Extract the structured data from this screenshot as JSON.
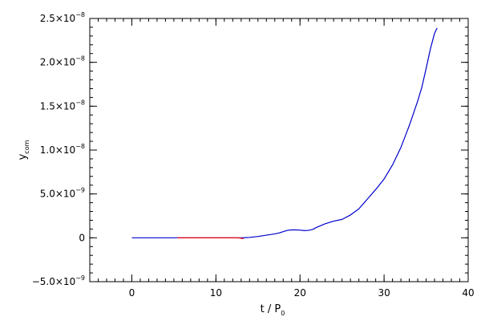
{
  "chart_data": {
    "type": "line",
    "xlim": [
      -5,
      40
    ],
    "ylim": [
      -5e-09,
      2.5e-08
    ],
    "xlabel": {
      "main": "t / P",
      "sub": "0"
    },
    "ylabel": {
      "main": "y",
      "sub": "com"
    },
    "x_ticks": [
      {
        "value": 0,
        "label": "0"
      },
      {
        "value": 10,
        "label": "10"
      },
      {
        "value": 20,
        "label": "20"
      },
      {
        "value": 30,
        "label": "30"
      },
      {
        "value": 40,
        "label": "40"
      }
    ],
    "y_ticks": [
      {
        "value": -5e-09,
        "mantissa": "−5.0×10",
        "exp": "−9"
      },
      {
        "value": 0,
        "mantissa": "0",
        "exp": ""
      },
      {
        "value": 5e-09,
        "mantissa": "5.0×10",
        "exp": "−9"
      },
      {
        "value": 1e-08,
        "mantissa": "1.0×10",
        "exp": "−8"
      },
      {
        "value": 1.5e-08,
        "mantissa": "1.5×10",
        "exp": "−8"
      },
      {
        "value": 2e-08,
        "mantissa": "2.0×10",
        "exp": "−8"
      },
      {
        "value": 2.5e-08,
        "mantissa": "2.5×10",
        "exp": "−8"
      }
    ],
    "x_minor_step": 1,
    "y_minor_step": 1e-09,
    "grid": false,
    "series": [
      {
        "color": "#0000cc",
        "points": [
          [
            0,
            0
          ],
          [
            5,
            0
          ],
          [
            10,
            0
          ],
          [
            12,
            0
          ],
          [
            13,
            0
          ],
          [
            13.5,
            2e-11
          ],
          [
            14,
            5e-11
          ],
          [
            15,
            1.5e-10
          ],
          [
            16,
            3e-10
          ],
          [
            17,
            4.5e-10
          ],
          [
            17.5,
            5.5e-10
          ],
          [
            18,
            7e-10
          ],
          [
            18.5,
            8.5e-10
          ],
          [
            19,
            9e-10
          ],
          [
            19.5,
            9e-10
          ],
          [
            20,
            8.8e-10
          ],
          [
            20.5,
            8.2e-10
          ],
          [
            21,
            8.5e-10
          ],
          [
            21.5,
            9.5e-10
          ],
          [
            22,
            1.2e-09
          ],
          [
            23,
            1.6e-09
          ],
          [
            24,
            1.9e-09
          ],
          [
            25,
            2.1e-09
          ],
          [
            26,
            2.6e-09
          ],
          [
            27,
            3.3e-09
          ],
          [
            28,
            4.4e-09
          ],
          [
            29,
            5.5e-09
          ],
          [
            30,
            6.7e-09
          ],
          [
            31,
            8.3e-09
          ],
          [
            32,
            1.03e-08
          ],
          [
            33,
            1.28e-08
          ],
          [
            34,
            1.56e-08
          ],
          [
            34.5,
            1.72e-08
          ],
          [
            35,
            1.93e-08
          ],
          [
            35.5,
            2.15e-08
          ],
          [
            36,
            2.33e-08
          ],
          [
            36.3,
            2.39e-08
          ]
        ]
      },
      {
        "color": "#ff0000",
        "points": [
          [
            5.4,
            0
          ],
          [
            6.6,
            0
          ],
          [
            12.6,
            0
          ],
          [
            13.3,
            -1e-10
          ]
        ]
      }
    ]
  }
}
